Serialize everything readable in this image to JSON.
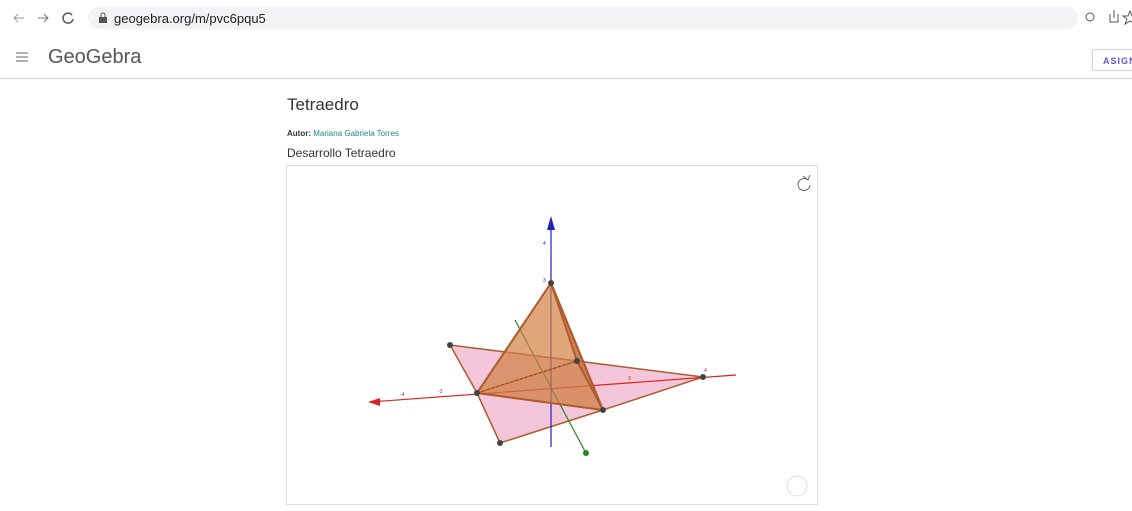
{
  "browser": {
    "url": "geogebra.org/m/pvc6pqu5"
  },
  "header": {
    "logo": "GeoGebra",
    "button": "ASIGN"
  },
  "page": {
    "title": "Tetraedro",
    "author_label": "Autor:",
    "author": "Mariana Gabriela Torres",
    "subtitle": "Desarrollo Tetraedro"
  },
  "applet": {
    "axis_labels": [
      "4",
      "3",
      "-4",
      "-3",
      "3",
      "4"
    ]
  }
}
